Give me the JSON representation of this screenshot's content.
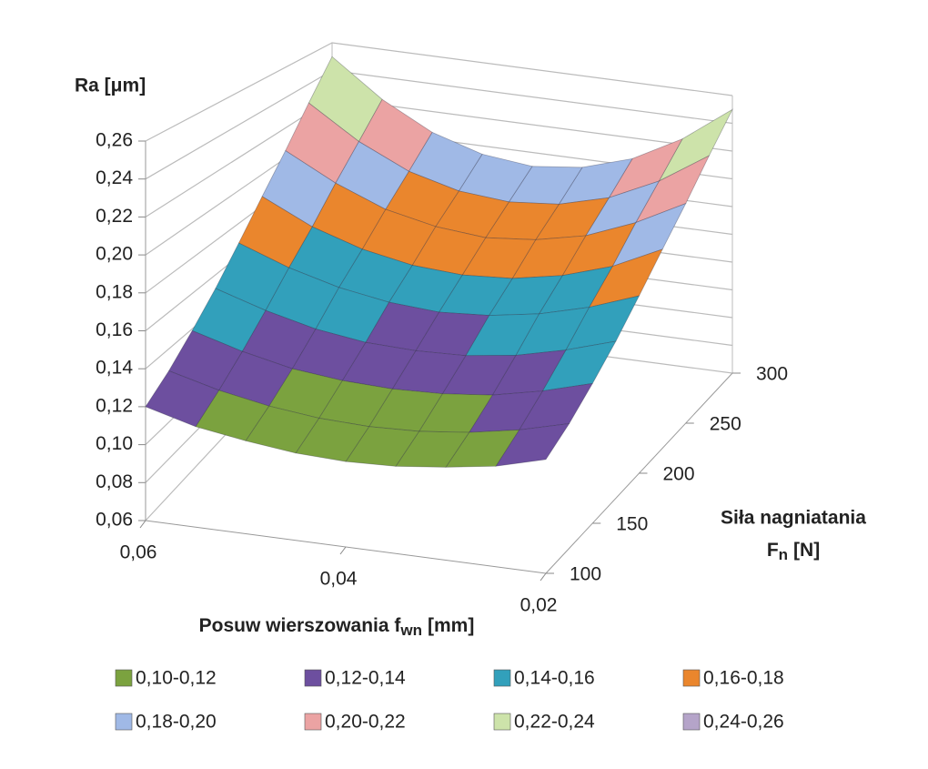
{
  "chart_data": {
    "type": "surface",
    "zlabel": "Ra [μm]",
    "xlabel": {
      "text": "Posuw wierszowania f",
      "sub": "wn",
      "unit": "[mm]"
    },
    "ylabel": {
      "line1": "Siła nagniatania",
      "text": "F",
      "sub": "n",
      "unit": "[N]"
    },
    "x": [
      0.02,
      0.025,
      0.03,
      0.035,
      0.04,
      0.045,
      0.05,
      0.055,
      0.06
    ],
    "y": [
      100,
      125,
      150,
      175,
      200,
      225,
      250,
      275,
      300
    ],
    "z": [
      [
        0.12,
        0.113,
        0.109,
        0.106,
        0.105,
        0.106,
        0.109,
        0.113,
        0.12
      ],
      [
        0.128,
        0.121,
        0.116,
        0.113,
        0.112,
        0.113,
        0.116,
        0.121,
        0.128
      ],
      [
        0.139,
        0.131,
        0.125,
        0.122,
        0.121,
        0.122,
        0.125,
        0.131,
        0.139
      ],
      [
        0.152,
        0.143,
        0.136,
        0.132,
        0.131,
        0.132,
        0.136,
        0.143,
        0.152
      ],
      [
        0.168,
        0.157,
        0.149,
        0.144,
        0.142,
        0.144,
        0.149,
        0.157,
        0.168
      ],
      [
        0.186,
        0.171,
        0.161,
        0.155,
        0.153,
        0.155,
        0.161,
        0.171,
        0.186
      ],
      [
        0.205,
        0.188,
        0.175,
        0.168,
        0.165,
        0.168,
        0.175,
        0.188,
        0.205
      ],
      [
        0.227,
        0.205,
        0.189,
        0.18,
        0.177,
        0.18,
        0.189,
        0.205,
        0.227
      ],
      [
        0.25,
        0.224,
        0.205,
        0.194,
        0.19,
        0.194,
        0.205,
        0.224,
        0.25
      ]
    ],
    "xlim": [
      0.02,
      0.06
    ],
    "x_reversed": true,
    "ylim": [
      100,
      300
    ],
    "zlim": [
      0.06,
      0.26
    ],
    "xticks": [
      {
        "value": 0.06,
        "label": "0,06"
      },
      {
        "value": 0.04,
        "label": "0,04"
      },
      {
        "value": 0.02,
        "label": "0,02"
      }
    ],
    "yticks": [
      100,
      150,
      200,
      250,
      300
    ],
    "zticks": [
      {
        "value": 0.06,
        "label": "0,06"
      },
      {
        "value": 0.08,
        "label": "0,08"
      },
      {
        "value": 0.1,
        "label": "0,10"
      },
      {
        "value": 0.12,
        "label": "0,12"
      },
      {
        "value": 0.14,
        "label": "0,14"
      },
      {
        "value": 0.16,
        "label": "0,16"
      },
      {
        "value": 0.18,
        "label": "0,18"
      },
      {
        "value": 0.2,
        "label": "0,20"
      },
      {
        "value": 0.22,
        "label": "0,22"
      },
      {
        "value": 0.24,
        "label": "0,24"
      },
      {
        "value": 0.26,
        "label": "0,26"
      }
    ],
    "bands": [
      {
        "name": "0,10-0,12",
        "range": [
          0.1,
          0.12
        ],
        "color": "#7ba23f"
      },
      {
        "name": "0,12-0,14",
        "range": [
          0.12,
          0.14
        ],
        "color": "#6d4f9f"
      },
      {
        "name": "0,14-0,16",
        "range": [
          0.14,
          0.16
        ],
        "color": "#32a0bb"
      },
      {
        "name": "0,16-0,18",
        "range": [
          0.16,
          0.18
        ],
        "color": "#ea862d"
      },
      {
        "name": "0,18-0,20",
        "range": [
          0.18,
          0.2
        ],
        "color": "#a0b9e6"
      },
      {
        "name": "0,20-0,22",
        "range": [
          0.2,
          0.22
        ],
        "color": "#eba3a3"
      },
      {
        "name": "0,22-0,24",
        "range": [
          0.22,
          0.24
        ],
        "color": "#cde3aa"
      },
      {
        "name": "0,24-0,26",
        "range": [
          0.24,
          0.26
        ],
        "color": "#b5a4c9"
      }
    ]
  }
}
